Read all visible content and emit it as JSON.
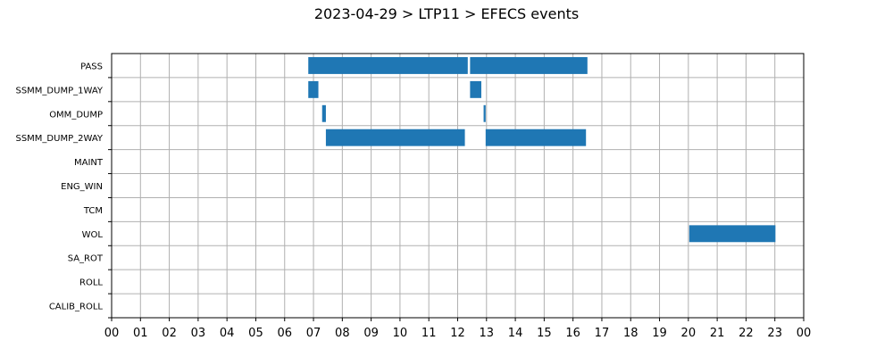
{
  "chart_data": {
    "type": "gantt",
    "title": "2023-04-29 > LTP11 > EFECS events",
    "xlabel": "",
    "ylabel": "",
    "x_unit": "hour of day",
    "xlim": [
      0,
      24
    ],
    "x_tick_labels": [
      "00",
      "01",
      "02",
      "03",
      "04",
      "05",
      "06",
      "07",
      "08",
      "09",
      "10",
      "11",
      "12",
      "13",
      "14",
      "15",
      "16",
      "17",
      "18",
      "19",
      "20",
      "21",
      "22",
      "23",
      "00"
    ],
    "categories": [
      "PASS",
      "SSMM_DUMP_1WAY",
      "OMM_DUMP",
      "SSMM_DUMP_2WAY",
      "MAINT",
      "ENG_WIN",
      "TCM",
      "WOL",
      "SA_ROT",
      "ROLL",
      "CALIB_ROLL"
    ],
    "grid": true,
    "bar_color": "#1f77b4",
    "events": [
      {
        "category": "PASS",
        "start": 6.82,
        "end": 12.35
      },
      {
        "category": "PASS",
        "start": 12.43,
        "end": 16.5
      },
      {
        "category": "SSMM_DUMP_1WAY",
        "start": 6.82,
        "end": 7.17
      },
      {
        "category": "SSMM_DUMP_1WAY",
        "start": 12.43,
        "end": 12.82
      },
      {
        "category": "OMM_DUMP",
        "start": 7.3,
        "end": 7.43
      },
      {
        "category": "OMM_DUMP",
        "start": 12.9,
        "end": 12.97
      },
      {
        "category": "SSMM_DUMP_2WAY",
        "start": 7.43,
        "end": 12.25
      },
      {
        "category": "SSMM_DUMP_2WAY",
        "start": 12.97,
        "end": 16.45
      },
      {
        "category": "WOL",
        "start": 20.03,
        "end": 23.02
      }
    ]
  }
}
